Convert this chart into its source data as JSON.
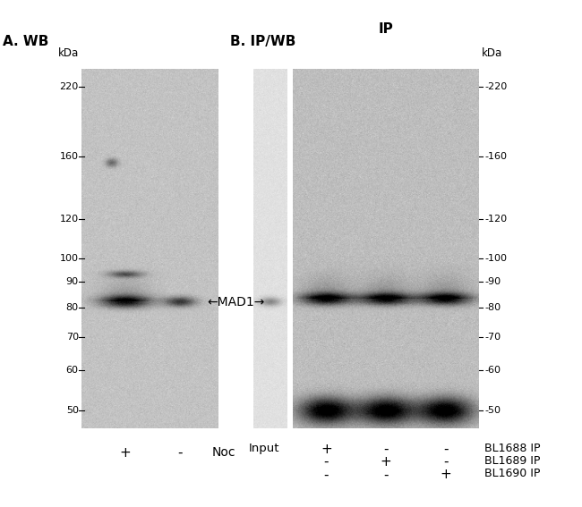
{
  "fig_width": 6.5,
  "fig_height": 5.67,
  "bg_color": "#ffffff",
  "panel_A_label": "A. WB",
  "panel_B_label": "B. IP/WB",
  "IP_label": "IP",
  "MAD1_label": "←MAD1→",
  "kDa_label_left": "kDa",
  "kDa_label_right": "kDa",
  "left_markers": [
    220,
    160,
    120,
    100,
    90,
    80,
    70,
    60,
    50
  ],
  "right_markers": [
    220,
    160,
    120,
    100,
    90,
    80,
    70,
    60,
    50
  ],
  "noc_label": "Noc",
  "noc_plus": "+",
  "noc_minus": "-",
  "ip_labels": [
    "BL1688 IP",
    "BL1689 IP",
    "BL1690 IP"
  ],
  "gel_bg_A": 195,
  "gel_bg_Bin": 225,
  "gel_bg_Bip": 190
}
